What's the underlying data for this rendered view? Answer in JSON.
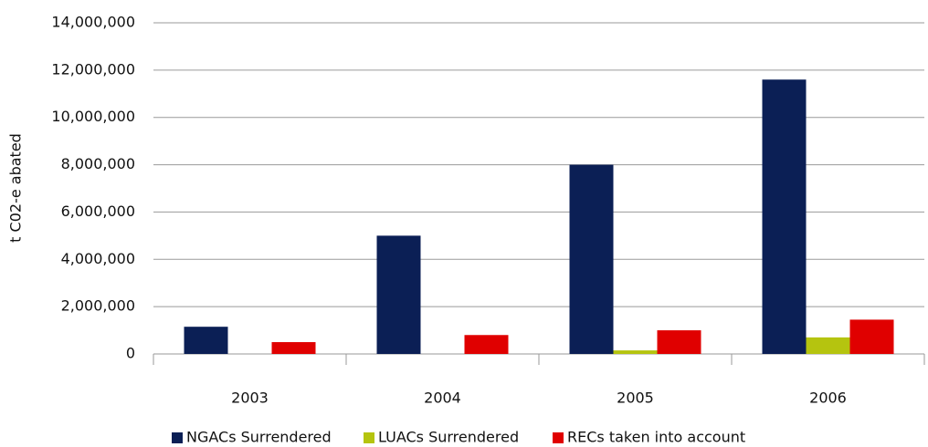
{
  "chart_data": {
    "type": "bar",
    "y_label": "t C02-e abated",
    "categories": [
      "2003",
      "2004",
      "2005",
      "2006"
    ],
    "series": [
      {
        "name": "NGACs Surrendered",
        "color": "#0b1f55",
        "values": [
          1150000,
          5000000,
          8000000,
          11600000
        ]
      },
      {
        "name": "LUACs Surrendered",
        "color": "#b5c40f",
        "values": [
          0,
          0,
          150000,
          700000
        ]
      },
      {
        "name": "RECs taken into account",
        "color": "#e00000",
        "values": [
          500000,
          800000,
          1000000,
          1450000
        ]
      }
    ],
    "ylim": [
      0,
      14000000
    ],
    "yticks": [
      0,
      {
        "value": 2000000,
        "label": "2,000,000"
      },
      {
        "value": 4000000,
        "label": "4,000,000"
      },
      {
        "value": 6000000,
        "label": "6,000,000"
      },
      {
        "value": 8000000,
        "label": "8,000,000"
      },
      {
        "value": 10000000,
        "label": "10,000,000"
      },
      {
        "value": 12000000,
        "label": "12,000,000"
      },
      {
        "value": 14000000,
        "label": "14,000,000"
      }
    ],
    "grid": true,
    "legend": "bottom"
  }
}
